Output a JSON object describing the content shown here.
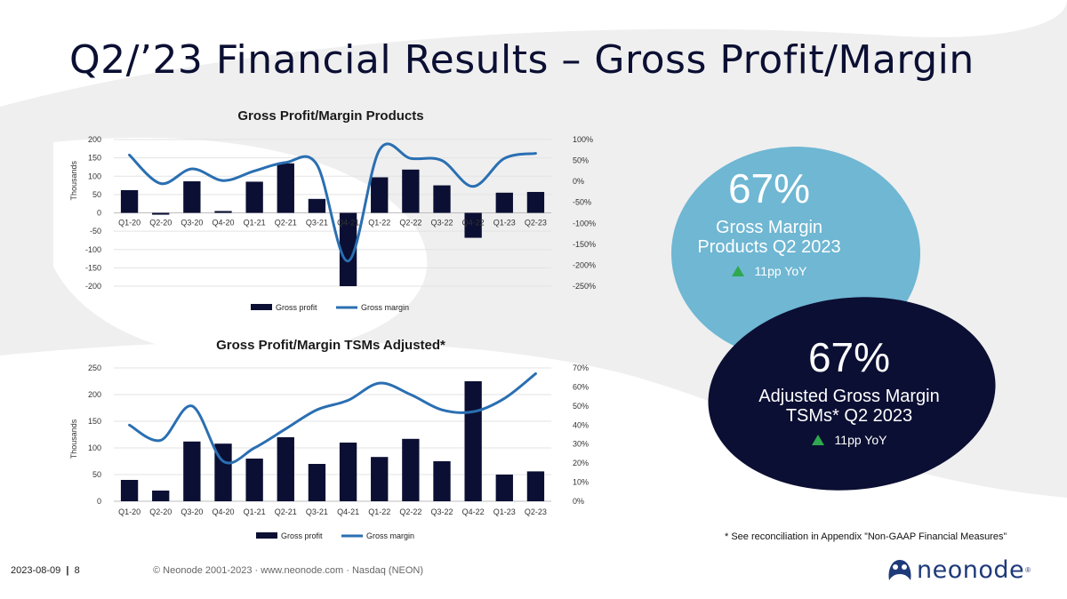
{
  "page_title": "Q2/’23 Financial Results – Gross Profit/Margin",
  "chart_data": [
    {
      "type": "bar",
      "title": "Gross Profit/Margin Products",
      "ylabel": "Thousands",
      "categories": [
        "Q1-20",
        "Q2-20",
        "Q3-20",
        "Q4-20",
        "Q1-21",
        "Q2-21",
        "Q3-21",
        "Q4-21",
        "Q1-22",
        "Q2-22",
        "Q3-22",
        "Q4-22",
        "Q1-23",
        "Q2-23"
      ],
      "series": [
        {
          "name": "Gross profit",
          "type": "bar",
          "axis": "left",
          "values": [
            62,
            -5,
            86,
            5,
            85,
            135,
            38,
            -200,
            97,
            118,
            75,
            -68,
            55,
            57
          ],
          "color": "#0b0f33"
        },
        {
          "name": "Gross margin",
          "type": "line",
          "axis": "right",
          "values": [
            63,
            -5,
            30,
            2,
            25,
            45,
            40,
            -190,
            75,
            55,
            50,
            -12,
            55,
            67
          ],
          "color": "#2a6fb2"
        }
      ],
      "ylim": [
        -200,
        200
      ],
      "yticks": [
        "200",
        "150",
        "100",
        "50",
        "0",
        "-50",
        "-100",
        "-150",
        "-200"
      ],
      "ylim_right": [
        -250,
        100
      ],
      "yticks_right": [
        "100%",
        "50%",
        "0%",
        "-50%",
        "-100%",
        "-150%",
        "-200%",
        "-250%"
      ],
      "legend": "bottom",
      "grid": true
    },
    {
      "type": "bar",
      "title": "Gross Profit/Margin TSMs Adjusted*",
      "ylabel": "Thousands",
      "categories": [
        "Q1-20",
        "Q2-20",
        "Q3-20",
        "Q4-20",
        "Q1-21",
        "Q2-21",
        "Q3-21",
        "Q4-21",
        "Q1-22",
        "Q2-22",
        "Q3-22",
        "Q4-22",
        "Q1-23",
        "Q2-23"
      ],
      "series": [
        {
          "name": "Gross profit",
          "type": "bar",
          "axis": "left",
          "values": [
            40,
            20,
            112,
            108,
            80,
            120,
            70,
            110,
            83,
            117,
            75,
            225,
            50,
            56
          ],
          "color": "#0b0f33"
        },
        {
          "name": "Gross margin",
          "type": "line",
          "axis": "right",
          "values": [
            40,
            32,
            50,
            21,
            28,
            38,
            48,
            53,
            62,
            56,
            48,
            47,
            54,
            67
          ],
          "color": "#2a6fb2"
        }
      ],
      "ylim": [
        0,
        250
      ],
      "yticks": [
        "250",
        "200",
        "150",
        "100",
        "50",
        "0"
      ],
      "ylim_right": [
        0,
        70
      ],
      "yticks_right": [
        "70%",
        "60%",
        "50%",
        "40%",
        "30%",
        "20%",
        "10%",
        "0%"
      ],
      "legend": "bottom",
      "grid": true
    }
  ],
  "kpi_products": {
    "value": "67%",
    "label_line1": "Gross Margin",
    "label_line2": "Products Q2 2023",
    "yoy": "11pp YoY",
    "color": "#6fb7d3"
  },
  "kpi_tsms": {
    "value": "67%",
    "label_line1": "Adjusted Gross Margin",
    "label_line2": "TSMs* Q2 2023",
    "yoy": "11pp YoY",
    "color": "#0b0f33"
  },
  "footnote": "* See reconciliation in Appendix ”Non-GAAP Financial Measures”",
  "footer": {
    "date": "2023-08-09",
    "page": "8",
    "copyright": "© Neonode 2001-2023 · www.neonode.com · Nasdaq (NEON)"
  },
  "logo": {
    "text": "neonode",
    "mark": "®"
  },
  "colors": {
    "title": "#0b0f33",
    "up_arrow": "#2fa84f",
    "background_swirl": "#efefef"
  }
}
